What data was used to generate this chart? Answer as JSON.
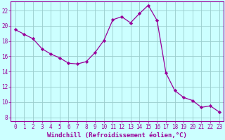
{
  "x": [
    0,
    1,
    2,
    3,
    4,
    5,
    6,
    7,
    8,
    9,
    10,
    11,
    12,
    13,
    14,
    15,
    16,
    17,
    18,
    19,
    20,
    21,
    22,
    23
  ],
  "y": [
    19.5,
    18.9,
    18.3,
    17.0,
    16.3,
    15.8,
    15.1,
    15.0,
    15.3,
    16.5,
    18.1,
    20.8,
    21.2,
    20.4,
    21.6,
    22.7,
    20.7,
    13.8,
    11.5,
    10.6,
    10.2,
    9.3,
    9.5,
    8.7
  ],
  "line_color": "#990099",
  "marker": "D",
  "marker_size": 2.2,
  "bg_color": "#ccffff",
  "grid_color": "#99cccc",
  "xlabel": "Windchill (Refroidissement éolien,°C)",
  "xlabel_color": "#990099",
  "ylabel_ticks": [
    8,
    10,
    12,
    14,
    16,
    18,
    20,
    22
  ],
  "xtick_labels": [
    "0",
    "1",
    "2",
    "3",
    "4",
    "5",
    "6",
    "7",
    "8",
    "9",
    "10",
    "11",
    "12",
    "13",
    "14",
    "15",
    "16",
    "17",
    "18",
    "19",
    "20",
    "21",
    "22",
    "23"
  ],
  "ylim": [
    7.5,
    23.2
  ],
  "xlim": [
    -0.5,
    23.5
  ],
  "tick_fontsize": 5.5,
  "xlabel_fontsize": 6.5,
  "lw": 0.9
}
